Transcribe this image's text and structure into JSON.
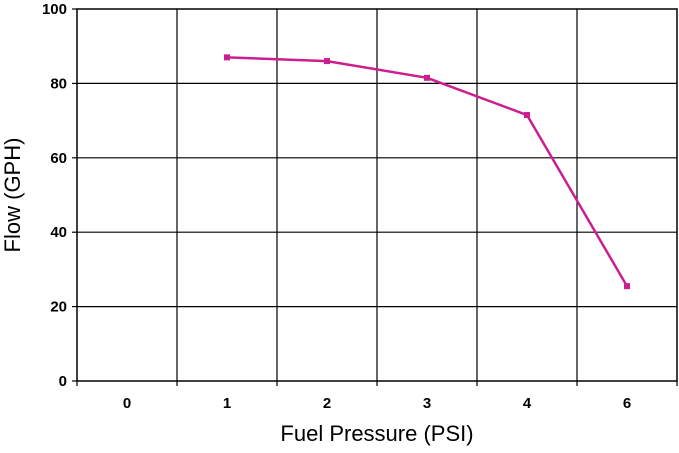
{
  "chart_data": {
    "type": "line",
    "title": "",
    "xlabel": "Fuel Pressure (PSI)",
    "ylabel": "Flow (GPH)",
    "categories": [
      "0",
      "1",
      "2",
      "3",
      "4",
      "6"
    ],
    "x_ticks": [
      "0",
      "1",
      "2",
      "3",
      "4",
      "6"
    ],
    "y_ticks": [
      "0",
      "20",
      "40",
      "60",
      "80",
      "100"
    ],
    "ylim": [
      0,
      100
    ],
    "grid": true,
    "legend": "none",
    "series": [
      {
        "color": "#cc1f8f",
        "values": [
          null,
          87,
          86,
          81.5,
          71.5,
          25.5
        ]
      }
    ]
  }
}
